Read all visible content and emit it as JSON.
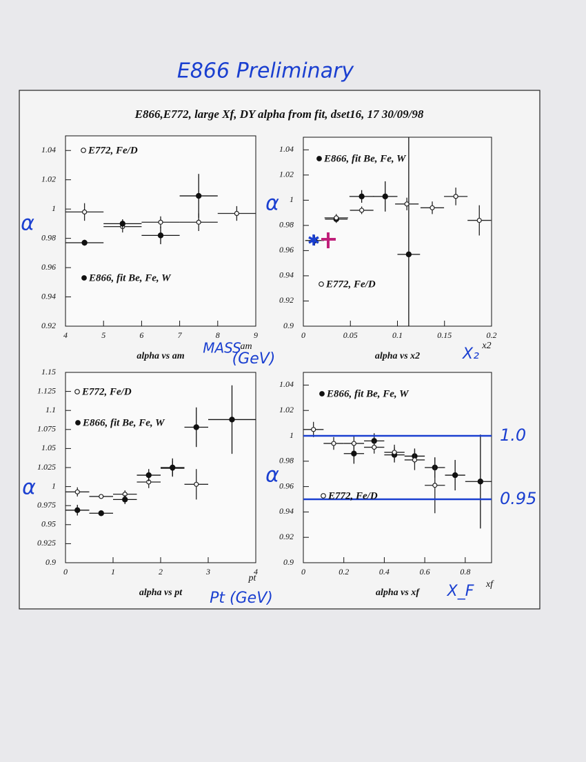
{
  "header": {
    "handwritten_title": "E866 Preliminary",
    "title": "E866,E772, large Xf, DY alpha from fit, dset16, 17 30/09/98"
  },
  "chart_data": [
    {
      "type": "scatter",
      "title": "alpha vs am",
      "x_label": "am",
      "handwritten_y_label": "α",
      "handwritten_x_label": [
        "MASS",
        "(GeV)"
      ],
      "xlim": [
        4,
        9
      ],
      "xticks": [
        4,
        5,
        6,
        7,
        8,
        9
      ],
      "ylim": [
        0.92,
        1.05
      ],
      "yticks": [
        0.92,
        0.94,
        0.96,
        0.98,
        1,
        1.02,
        1.04
      ],
      "series": [
        {
          "name": "E772, Fe/D",
          "marker": "open",
          "color": "#222222",
          "x": [
            4.5,
            5.5,
            6.5,
            7.5,
            8.5
          ],
          "values": [
            0.998,
            0.988,
            0.991,
            0.991,
            0.997
          ],
          "x_errors": [
            0.5,
            0.5,
            0.5,
            0.5,
            0.5
          ],
          "errors": [
            0.006,
            0.004,
            0.004,
            0.006,
            0.005
          ]
        },
        {
          "name": "E866, fit Be, Fe, W",
          "marker": "filled",
          "color": "#111111",
          "x": [
            4.5,
            5.5,
            6.5,
            7.5
          ],
          "values": [
            0.977,
            0.99,
            0.982,
            1.009
          ],
          "x_errors": [
            0.5,
            0.5,
            0.5,
            0.5
          ],
          "errors": [
            0.002,
            0.003,
            0.006,
            0.015
          ]
        }
      ]
    },
    {
      "type": "scatter",
      "title": "alpha vs x2",
      "x_label": "x2",
      "handwritten_y_label": "α",
      "handwritten_x_label": [
        "X₂"
      ],
      "xlim": [
        0,
        0.2
      ],
      "xticks": [
        0,
        0.05,
        0.1,
        0.15,
        0.2
      ],
      "ylim": [
        0.9,
        1.05
      ],
      "yticks": [
        0.9,
        0.92,
        0.94,
        0.96,
        0.98,
        1,
        1.02,
        1.04
      ],
      "series": [
        {
          "name": "E866, fit Be, Fe, W",
          "marker": "filled",
          "color": "#111111",
          "x": [
            0.012,
            0.035,
            0.062,
            0.087,
            0.112
          ],
          "values": [
            0.968,
            0.985,
            1.003,
            1.003,
            0.957
          ],
          "x_errors": [
            0.01,
            0.012,
            0.013,
            0.013,
            0.012
          ],
          "errors": [
            0.004,
            0.003,
            0.005,
            0.012,
            0.1
          ]
        },
        {
          "name": "E772, Fe/D",
          "marker": "open",
          "color": "#222222",
          "x": [
            0.035,
            0.062,
            0.11,
            0.137,
            0.162,
            0.187
          ],
          "values": [
            0.986,
            0.992,
            0.997,
            0.994,
            1.003,
            0.984
          ],
          "x_errors": [
            0.0125,
            0.0125,
            0.0125,
            0.0125,
            0.0125,
            0.0125
          ],
          "errors": [
            0.003,
            0.003,
            0.005,
            0.005,
            0.007,
            0.012
          ]
        }
      ]
    },
    {
      "type": "scatter",
      "title": "alpha vs pt",
      "x_label": "pt",
      "handwritten_y_label": "α",
      "handwritten_x_label": [
        "Pt (GeV)"
      ],
      "xlim": [
        0,
        4
      ],
      "xticks": [
        0,
        1,
        2,
        3,
        4
      ],
      "ylim": [
        0.9,
        1.15
      ],
      "yticks": [
        0.9,
        0.925,
        0.95,
        0.975,
        1,
        1.025,
        1.05,
        1.075,
        1.1,
        1.125,
        1.15
      ],
      "series": [
        {
          "name": "E772, Fe/D",
          "marker": "open",
          "color": "#222222",
          "x": [
            0.25,
            0.75,
            1.25,
            1.75,
            2.25,
            2.75
          ],
          "values": [
            0.993,
            0.987,
            0.99,
            1.006,
            1.024,
            1.003
          ],
          "x_errors": [
            0.25,
            0.25,
            0.25,
            0.25,
            0.25,
            0.25
          ],
          "errors": [
            0.006,
            0.003,
            0.005,
            0.008,
            0.01,
            0.02
          ]
        },
        {
          "name": "E866, fit Be, Fe, W",
          "marker": "filled",
          "color": "#111111",
          "x": [
            0.25,
            0.75,
            1.25,
            1.75,
            2.25,
            2.75,
            3.5
          ],
          "values": [
            0.969,
            0.965,
            0.983,
            1.015,
            1.025,
            1.078,
            1.088
          ],
          "x_errors": [
            0.25,
            0.25,
            0.25,
            0.25,
            0.25,
            0.25,
            0.5
          ],
          "errors": [
            0.007,
            0.003,
            0.006,
            0.008,
            0.012,
            0.026,
            0.045
          ]
        }
      ]
    },
    {
      "type": "scatter",
      "title": "alpha vs xf",
      "x_label": "xf",
      "handwritten_y_label": "α",
      "handwritten_x_label": [
        "X_F"
      ],
      "xlim": [
        0,
        0.93
      ],
      "xticks": [
        0,
        0.2,
        0.4,
        0.6,
        0.8
      ],
      "ylim": [
        0.9,
        1.05
      ],
      "yticks": [
        0.9,
        0.92,
        0.94,
        0.96,
        0.98,
        1,
        1.02,
        1.04
      ],
      "reference_lines": [
        {
          "value": 1,
          "label": "1.0"
        },
        {
          "value": 0.95,
          "label": "0.95"
        }
      ],
      "series": [
        {
          "name": "E866, fit Be, Fe, W",
          "marker": "filled",
          "color": "#111111",
          "x": [
            0.25,
            0.35,
            0.45,
            0.55,
            0.65,
            0.75,
            0.875
          ],
          "values": [
            0.986,
            0.996,
            0.985,
            0.984,
            0.975,
            0.969,
            0.964
          ],
          "x_errors": [
            0.05,
            0.05,
            0.05,
            0.05,
            0.05,
            0.05,
            0.075
          ],
          "errors": [
            0.008,
            0.006,
            0.006,
            0.006,
            0.008,
            0.012,
            0.037
          ]
        },
        {
          "name": "E772, Fe/D",
          "marker": "open",
          "color": "#222222",
          "x": [
            0.05,
            0.15,
            0.25,
            0.35,
            0.45,
            0.55,
            0.65
          ],
          "values": [
            1.005,
            0.994,
            0.994,
            0.991,
            0.987,
            0.981,
            0.961
          ],
          "x_errors": [
            0.05,
            0.05,
            0.05,
            0.05,
            0.05,
            0.05,
            0.05
          ],
          "errors": [
            0.006,
            0.005,
            0.006,
            0.005,
            0.006,
            0.008,
            0.022
          ]
        }
      ]
    }
  ]
}
